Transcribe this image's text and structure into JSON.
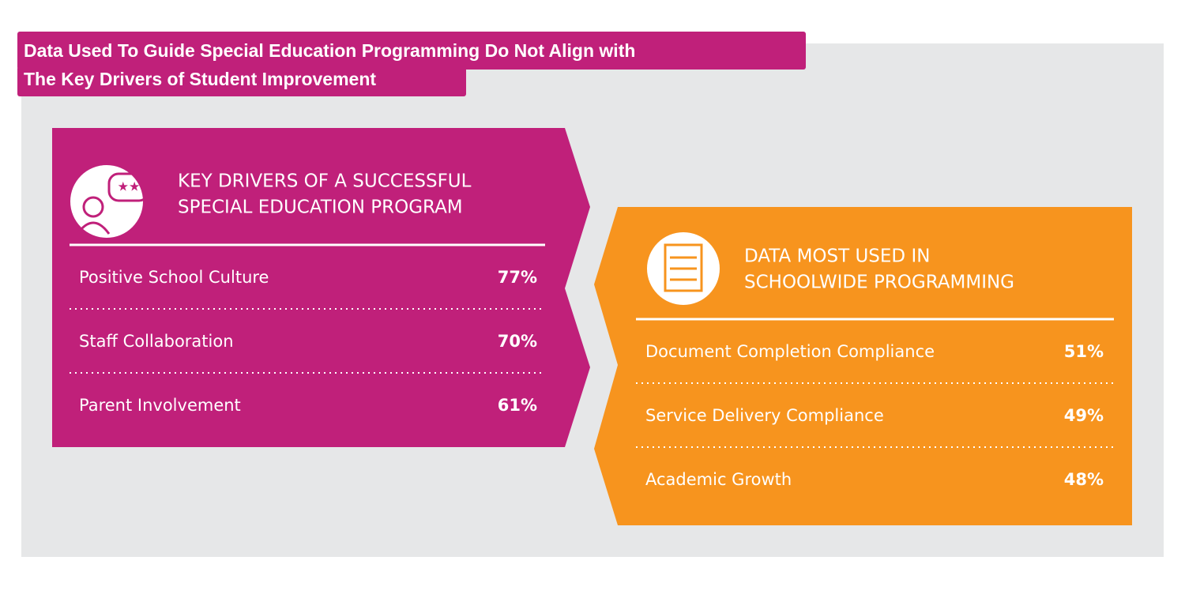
{
  "title_lines": [
    "Data Used To Guide Special Education Programming Do Not Align with",
    "The Key Drivers of Student Improvement"
  ],
  "panels": [
    {
      "heading_lines": [
        "KEY DRIVERS OF A SUCCESSFUL",
        "SPECIAL EDUCATION PROGRAM"
      ],
      "items": [
        {
          "label": "Positive School Culture",
          "value": "77%"
        },
        {
          "label": "Staff Collaboration",
          "value": "70%"
        },
        {
          "label": "Parent Involvement",
          "value": "61%"
        }
      ]
    },
    {
      "heading_lines": [
        "DATA MOST USED IN",
        "SCHOOLWIDE PROGRAMMING"
      ],
      "items": [
        {
          "label": "Document Completion Compliance",
          "value": "51%"
        },
        {
          "label": "Service Delivery Compliance",
          "value": "49%"
        },
        {
          "label": "Academic Growth",
          "value": "48%"
        }
      ]
    }
  ]
}
